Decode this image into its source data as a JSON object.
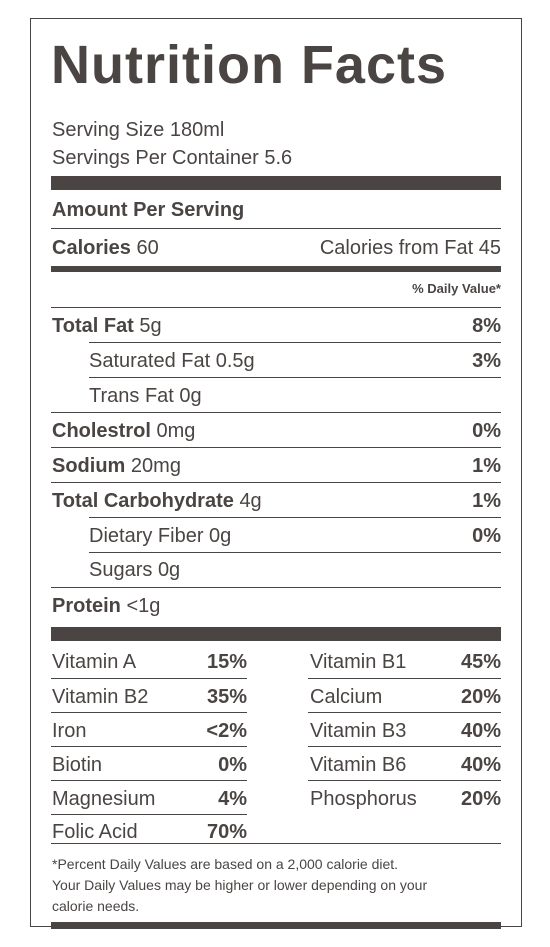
{
  "title": "Nutrition Facts",
  "serving_size": "Serving Size 180ml",
  "servings_per_container": "Servings Per Container 5.6",
  "amount_per_serving": "Amount Per Serving",
  "calories_label": "Calories",
  "calories_value": "60",
  "calories_from_fat": "Calories from Fat 45",
  "daily_value_header": "% Daily Value*",
  "nutrients": [
    {
      "name": "Total Fat",
      "amount": "5g",
      "pct": "8%"
    },
    {
      "name": "Saturated Fat",
      "amount": "0.5g",
      "pct": "3%"
    },
    {
      "name": "Trans Fat",
      "amount": "0g",
      "pct": ""
    },
    {
      "name": "Cholestrol",
      "amount": "0mg",
      "pct": "0%"
    },
    {
      "name": "Sodium",
      "amount": "20mg",
      "pct": "1%"
    },
    {
      "name": "Total Carbohydrate",
      "amount": "4g",
      "pct": "1%"
    },
    {
      "name": "Dietary Fiber",
      "amount": "0g",
      "pct": "0%"
    },
    {
      "name": "Sugars",
      "amount": "0g",
      "pct": ""
    },
    {
      "name": "Protein",
      "amount": "<1g",
      "pct": ""
    }
  ],
  "vitamins": [
    {
      "left_name": "Vitamin A",
      "left_pct": "15%",
      "right_name": "Vitamin B1",
      "right_pct": "45%"
    },
    {
      "left_name": "Vitamin B2",
      "left_pct": "35%",
      "right_name": "Calcium",
      "right_pct": "20%"
    },
    {
      "left_name": "Iron",
      "left_pct": "<2%",
      "right_name": "Vitamin B3",
      "right_pct": "40%"
    },
    {
      "left_name": "Biotin",
      "left_pct": "0%",
      "right_name": "Vitamin B6",
      "right_pct": "40%"
    },
    {
      "left_name": "Magnesium",
      "left_pct": "4%",
      "right_name": "Phosphorus",
      "right_pct": "20%"
    },
    {
      "left_name": "Folic Acid",
      "left_pct": "70%",
      "right_name": "",
      "right_pct": ""
    }
  ],
  "footnote": [
    "*Percent Daily Values are based on a 2,000 calorie diet.",
    "Your Daily Values may be higher or lower depending on your",
    "calorie needs."
  ],
  "colors": {
    "ink": "#4a4543",
    "background": "#ffffff"
  }
}
